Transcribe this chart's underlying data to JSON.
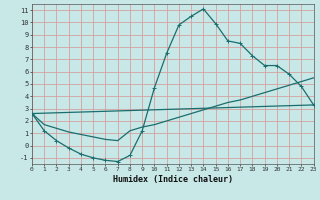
{
  "xlabel": "Humidex (Indice chaleur)",
  "bg_color": "#c8e8e8",
  "grid_color": "#d4a0a0",
  "line_color": "#1a6e6e",
  "xlim": [
    0,
    23
  ],
  "ylim": [
    -1.5,
    11.5
  ],
  "xticks": [
    0,
    1,
    2,
    3,
    4,
    5,
    6,
    7,
    8,
    9,
    10,
    11,
    12,
    13,
    14,
    15,
    16,
    17,
    18,
    19,
    20,
    21,
    22,
    23
  ],
  "yticks": [
    -1,
    0,
    1,
    2,
    3,
    4,
    5,
    6,
    7,
    8,
    9,
    10,
    11
  ],
  "curve1_x": [
    0,
    1,
    2,
    3,
    4,
    5,
    6,
    7,
    8,
    9,
    10,
    11,
    12,
    13,
    14,
    15,
    16,
    17,
    18,
    19,
    20,
    21,
    22,
    23
  ],
  "curve1_y": [
    2.6,
    1.2,
    0.4,
    -0.2,
    -0.7,
    -1.0,
    -1.2,
    -1.3,
    -0.8,
    1.2,
    4.7,
    7.5,
    9.8,
    10.5,
    11.1,
    9.9,
    8.5,
    8.3,
    7.3,
    6.5,
    6.5,
    5.8,
    4.8,
    3.3
  ],
  "curve2_x": [
    0,
    1,
    2,
    3,
    4,
    5,
    6,
    7,
    8,
    9,
    10,
    11,
    12,
    13,
    14,
    15,
    16,
    17,
    18,
    19,
    20,
    21,
    22,
    23
  ],
  "curve2_y": [
    2.6,
    1.7,
    1.4,
    1.1,
    0.9,
    0.7,
    0.5,
    0.4,
    1.2,
    1.5,
    1.7,
    2.0,
    2.3,
    2.6,
    2.9,
    3.2,
    3.5,
    3.7,
    4.0,
    4.3,
    4.6,
    4.9,
    5.2,
    5.5
  ],
  "curve3_x": [
    0,
    23
  ],
  "curve3_y": [
    2.6,
    3.3
  ],
  "marker": "+"
}
